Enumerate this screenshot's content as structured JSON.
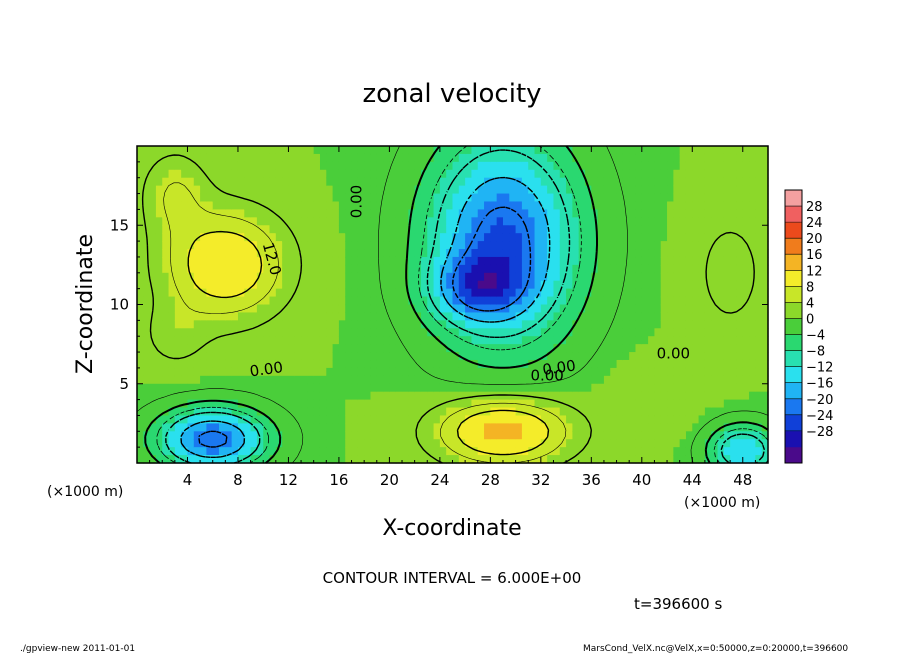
{
  "chart_data": {
    "type": "heatmap",
    "title": "zonal velocity",
    "xlabel": "X-coordinate",
    "ylabel": "Z-coordinate",
    "x_units": "(×1000 m)",
    "y_units": "(×1000 m)",
    "xlim": [
      0,
      50
    ],
    "ylim": [
      0,
      20
    ],
    "x_ticks": [
      "4",
      "8",
      "12",
      "16",
      "20",
      "24",
      "28",
      "32",
      "36",
      "40",
      "44",
      "48"
    ],
    "y_ticks": [
      "5",
      "10",
      "15"
    ],
    "colorbar": {
      "labels": [
        "28",
        "24",
        "20",
        "16",
        "12",
        "8",
        "4",
        "0",
        "−4",
        "−8",
        "−12",
        "−16",
        "−20",
        "−24",
        "−28"
      ],
      "levels": [
        -32,
        -28,
        -24,
        -20,
        -16,
        -12,
        -8,
        -4,
        0,
        4,
        8,
        12,
        16,
        20,
        24,
        28,
        32
      ],
      "colors": [
        "#4a0a8a",
        "#1a10b0",
        "#1040d8",
        "#1a78f0",
        "#20b4f4",
        "#2ae0ee",
        "#28e0b0",
        "#2ad870",
        "#4ace3a",
        "#8cd82a",
        "#c8e628",
        "#f4ec2a",
        "#f4b424",
        "#f07c1c",
        "#ec4a1c",
        "#f06060",
        "#f4a0a0"
      ]
    },
    "contour_labels": [
      "0.00",
      "0.00",
      "0.00",
      "0.00",
      "0.00",
      "12.0"
    ],
    "contour_interval_text": "CONTOUR INTERVAL = 6.000E+00",
    "time_text": "t=396600 s",
    "footer_left": "./gpview-new  2011-01-01",
    "footer_right": "MarsCond_VelX.nc@VelX,x=0:50000,z=0:20000,t=396600",
    "field_features": [
      {
        "x": 7,
        "z": 12.5,
        "u": 16,
        "sx": 4.5,
        "sz": 3.2
      },
      {
        "x": 3,
        "z": 17,
        "u": 9,
        "sx": 2.5,
        "sz": 2.5
      },
      {
        "x": 3,
        "z": 8,
        "u": 7,
        "sx": 2.5,
        "sz": 2.0
      },
      {
        "x": 29,
        "z": 14,
        "u": -21,
        "sx": 5.5,
        "sz": 6.0
      },
      {
        "x": 27,
        "z": 11,
        "u": -10,
        "sx": 3.5,
        "sz": 2.0
      },
      {
        "x": 6,
        "z": 1.5,
        "u": -20,
        "sx": 4.0,
        "sz": 1.8
      },
      {
        "x": 48,
        "z": 0.8,
        "u": -12,
        "sx": 2.5,
        "sz": 1.5
      },
      {
        "x": 29,
        "z": 2.0,
        "u": 18,
        "sx": 5.0,
        "sz": 2.0
      },
      {
        "x": 47,
        "z": 12,
        "u": 7,
        "sx": 3.0,
        "sz": 4.0
      },
      {
        "x": 41,
        "z": 4,
        "u": 5,
        "sx": 4.0,
        "sz": 2.5
      }
    ],
    "field_background": 4
  }
}
